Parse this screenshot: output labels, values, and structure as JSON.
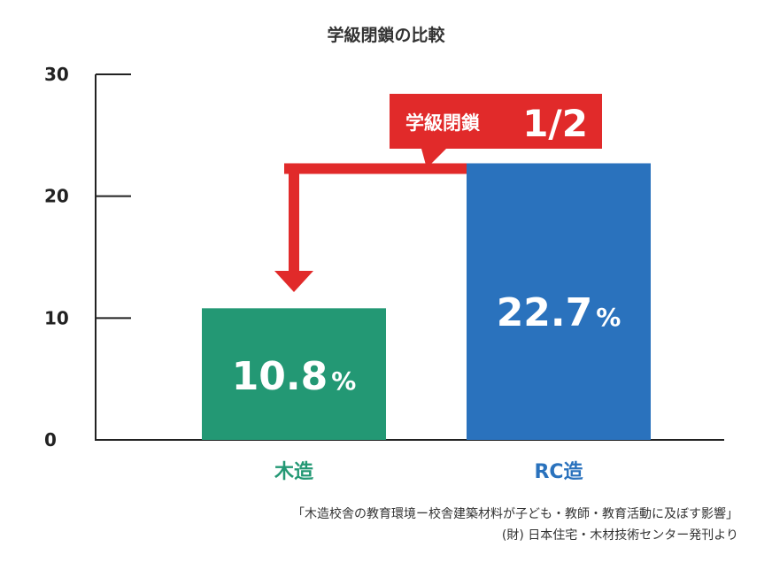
{
  "chart_data": {
    "type": "bar",
    "title": "学級閉鎖の比較",
    "categories": [
      "木造",
      "RC造"
    ],
    "values": [
      10.8,
      22.7
    ],
    "value_labels": [
      {
        "number": "10.8",
        "unit": "%"
      },
      {
        "number": "22.7",
        "unit": "%"
      }
    ],
    "ylim": [
      0,
      30
    ],
    "yticks": [
      0,
      10,
      20,
      30
    ],
    "ytick_labels": [
      "0",
      "10",
      "20",
      "30"
    ],
    "colors": [
      "#239874",
      "#2a72bd"
    ],
    "grid": false,
    "annotation": {
      "label": "学級閉鎖",
      "ratio": "1/2",
      "color": "#e12a2a",
      "from": "RC造",
      "to": "木造"
    }
  },
  "source": {
    "line1": "「木造校舎の教育環境ー校舎建築材料が子ども・教師・教育活動に及ぼす影響」",
    "line2": "(財) 日本住宅・木材技術センター発刊より"
  }
}
